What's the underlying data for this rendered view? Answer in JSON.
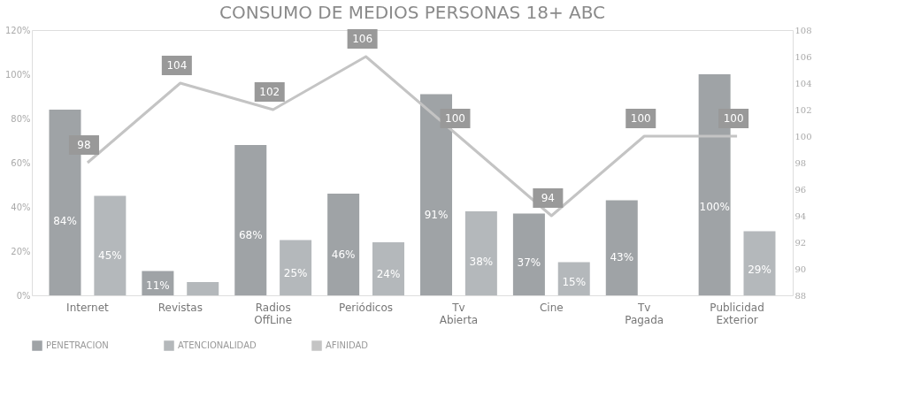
{
  "chart_data": {
    "type": "bar",
    "title": "CONSUMO DE MEDIOS PERSONAS 18+ ABC",
    "categories": [
      "Internet",
      "Revistas",
      "Radios OffLine",
      "Periódicos",
      "Tv Abierta",
      "Cine",
      "Tv Pagada",
      "Publicidad Exterior"
    ],
    "series": [
      {
        "name": "PENETRACION",
        "color": "#9fa3a6",
        "values": [
          84,
          11,
          68,
          46,
          91,
          37,
          43,
          100
        ],
        "value_labels": [
          "84%",
          "11%",
          "68%",
          "46%",
          "91%",
          "37%",
          "43%",
          "100%"
        ]
      },
      {
        "name": "ATENCIONALIDAD",
        "color": "#b4b8bb",
        "values": [
          45,
          6,
          25,
          24,
          38,
          15,
          null,
          29
        ],
        "value_labels": [
          "45%",
          null,
          "25%",
          "24%",
          "38%",
          "15%",
          null,
          "29%"
        ]
      },
      {
        "name": "AFINIDAD",
        "type": "line",
        "axis": "y2",
        "color": "#c4c4c4",
        "values": [
          98,
          104,
          102,
          106,
          100,
          94,
          100,
          100
        ],
        "value_labels": [
          "98",
          "104",
          "102",
          "106",
          "100",
          "94",
          "100",
          "100"
        ]
      }
    ],
    "ylim": [
      0,
      120
    ],
    "yticks": [
      {
        "value": 0,
        "label": "0%"
      },
      {
        "value": 20,
        "label": "20%"
      },
      {
        "value": 40,
        "label": "40%"
      },
      {
        "value": 60,
        "label": "60%"
      },
      {
        "value": 80,
        "label": "80%"
      },
      {
        "value": 100,
        "label": "100%"
      },
      {
        "value": 120,
        "label": "120%"
      }
    ],
    "y2lim": [
      88,
      108
    ],
    "y2ticks": [
      88,
      90,
      92,
      94,
      96,
      98,
      100,
      102,
      104,
      106,
      108
    ],
    "legend": "bottom",
    "grid": false
  }
}
